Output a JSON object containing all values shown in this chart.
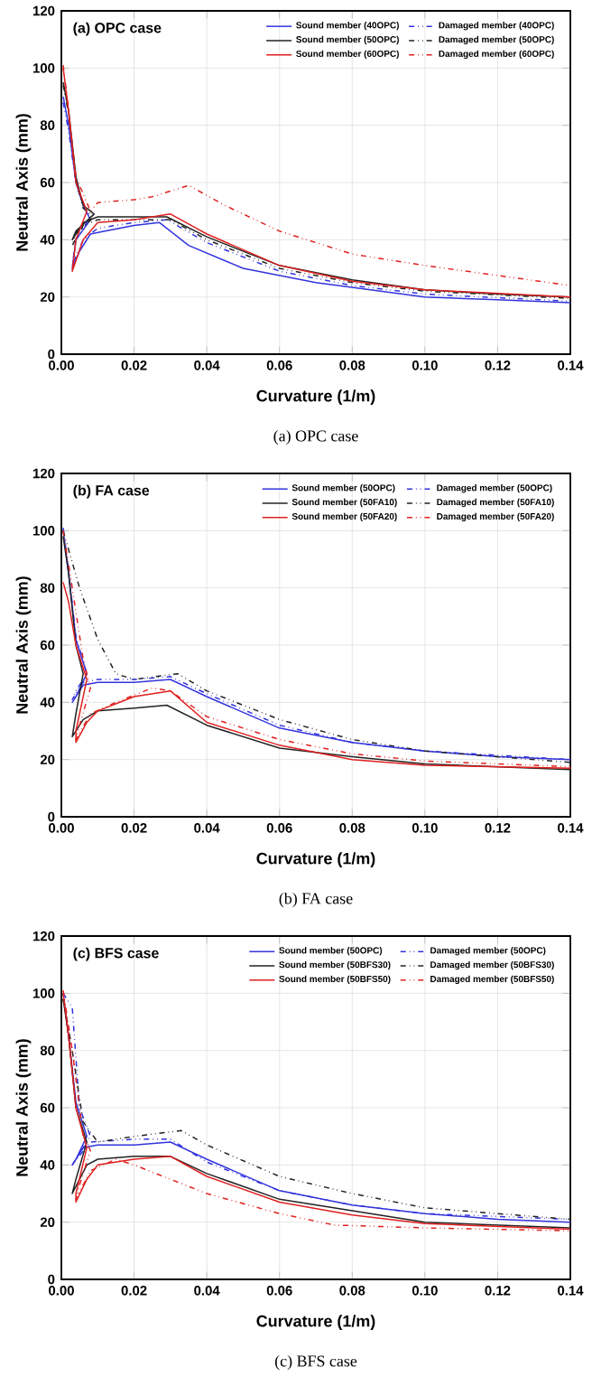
{
  "chart_data": [
    {
      "type": "line",
      "title": "(a) OPC case",
      "xlabel": "Curvature (1/m)",
      "ylabel": "Neutral Axis (mm)",
      "annotations": [
        "(a) OPC case"
      ],
      "xlim": [
        0,
        0.14
      ],
      "ylim": [
        0,
        120
      ],
      "xticks": [
        {
          "value": 0,
          "label": "0.00"
        },
        {
          "value": 0.02,
          "label": "0.02"
        },
        {
          "value": 0.04,
          "label": "0.04"
        },
        {
          "value": 0.06,
          "label": "0.06"
        },
        {
          "value": 0.08,
          "label": "0.08"
        },
        {
          "value": 0.1,
          "label": "0.10"
        },
        {
          "value": 0.12,
          "label": "0.12"
        },
        {
          "value": 0.14,
          "label": "0.14"
        }
      ],
      "yticks": [
        0,
        20,
        40,
        60,
        80,
        100,
        120
      ],
      "grid": true,
      "legend": "top right",
      "series": [
        {
          "name": "Sound member (40OPC)",
          "color": "#3333dd",
          "line_style": "solid",
          "x": [
            0.0005,
            0.002,
            0.004,
            0.006,
            0.008,
            0.004,
            0.003,
            0.005,
            0.008,
            0.012,
            0.02,
            0.027,
            0.035,
            0.05,
            0.07,
            0.1,
            0.12,
            0.14
          ],
          "values": [
            90,
            80,
            60,
            52,
            47,
            40,
            30,
            36,
            42,
            43,
            45,
            46,
            38,
            30,
            25,
            20,
            19,
            18
          ]
        },
        {
          "name": "Damaged member (40OPC)",
          "color": "#3333dd",
          "line_style": "dashdot",
          "x": [
            0.0005,
            0.002,
            0.004,
            0.006,
            0.008,
            0.004,
            0.003,
            0.006,
            0.01,
            0.02,
            0.029,
            0.04,
            0.06,
            0.08,
            0.1,
            0.14
          ],
          "values": [
            88,
            78,
            60,
            52,
            48,
            40,
            31,
            40,
            44,
            46,
            47,
            39,
            29,
            24,
            21,
            18.5
          ]
        },
        {
          "name": "Sound member (50OPC)",
          "color": "#222222",
          "line_style": "solid",
          "x": [
            0.0005,
            0.002,
            0.004,
            0.006,
            0.009,
            0.004,
            0.003,
            0.006,
            0.01,
            0.02,
            0.029,
            0.04,
            0.06,
            0.08,
            0.1,
            0.12,
            0.14
          ],
          "values": [
            95,
            85,
            62,
            52,
            49,
            43,
            40,
            46,
            48,
            48,
            48,
            41,
            31,
            26,
            22.5,
            21,
            20
          ]
        },
        {
          "name": "Damaged member (50OPC)",
          "color": "#222222",
          "line_style": "dashdot",
          "x": [
            0.0005,
            0.002,
            0.004,
            0.006,
            0.009,
            0.004,
            0.003,
            0.006,
            0.01,
            0.02,
            0.03,
            0.04,
            0.06,
            0.08,
            0.1,
            0.14
          ],
          "values": [
            94,
            84,
            61,
            51,
            48,
            42,
            38,
            45,
            47,
            47,
            47,
            40,
            30,
            25,
            22,
            19.5
          ]
        },
        {
          "name": "Sound member (60OPC)",
          "color": "#e02020",
          "line_style": "solid",
          "x": [
            0.0005,
            0.002,
            0.004,
            0.007,
            0.004,
            0.003,
            0.006,
            0.01,
            0.02,
            0.03,
            0.04,
            0.06,
            0.08,
            0.1,
            0.14
          ],
          "values": [
            100,
            85,
            60,
            50,
            40,
            29,
            40,
            46,
            47,
            49,
            42,
            31,
            25.5,
            22.5,
            20
          ]
        },
        {
          "name": "Damaged member (60OPC)",
          "color": "#e02020",
          "line_style": "dashdot",
          "x": [
            0.0005,
            0.002,
            0.004,
            0.008,
            0.01,
            0.02,
            0.025,
            0.035,
            0.045,
            0.06,
            0.08,
            0.1,
            0.12,
            0.14
          ],
          "values": [
            101,
            85,
            62,
            50,
            53,
            54,
            55,
            59,
            52,
            43,
            35,
            31,
            27.5,
            24
          ]
        }
      ]
    },
    {
      "type": "line",
      "title": "(b) FA case",
      "xlabel": "Curvature (1/m)",
      "ylabel": "Neutral Axis (mm)",
      "annotations": [
        "(b) FA case"
      ],
      "xlim": [
        0,
        0.14
      ],
      "ylim": [
        0,
        120
      ],
      "xticks": [
        {
          "value": 0,
          "label": "0.00"
        },
        {
          "value": 0.02,
          "label": "0.02"
        },
        {
          "value": 0.04,
          "label": "0.04"
        },
        {
          "value": 0.06,
          "label": "0.06"
        },
        {
          "value": 0.08,
          "label": "0.08"
        },
        {
          "value": 0.1,
          "label": "0.10"
        },
        {
          "value": 0.12,
          "label": "0.12"
        },
        {
          "value": 0.14,
          "label": "0.14"
        }
      ],
      "yticks": [
        0,
        20,
        40,
        60,
        80,
        100,
        120
      ],
      "grid": true,
      "legend": "top right",
      "series": [
        {
          "name": "Sound member (50OPC)",
          "color": "#3333dd",
          "line_style": "solid",
          "x": [
            0.0005,
            0.002,
            0.004,
            0.007,
            0.004,
            0.003,
            0.006,
            0.01,
            0.02,
            0.03,
            0.04,
            0.06,
            0.08,
            0.1,
            0.12,
            0.14
          ],
          "values": [
            100,
            85,
            62,
            50,
            42,
            40,
            46,
            47,
            47,
            48,
            42,
            31,
            26,
            23,
            21,
            20
          ]
        },
        {
          "name": "Damaged member (50OPC)",
          "color": "#3333dd",
          "line_style": "dashdot",
          "x": [
            0.0005,
            0.002,
            0.004,
            0.007,
            0.004,
            0.003,
            0.006,
            0.01,
            0.02,
            0.03,
            0.04,
            0.06,
            0.08,
            0.1,
            0.14
          ],
          "values": [
            101,
            86,
            63,
            50,
            44,
            41,
            47,
            48,
            48,
            49,
            43,
            32,
            26,
            23,
            20
          ]
        },
        {
          "name": "Sound member (50FA10)",
          "color": "#222222",
          "line_style": "solid",
          "x": [
            0.0005,
            0.002,
            0.004,
            0.006,
            0.004,
            0.003,
            0.006,
            0.01,
            0.02,
            0.029,
            0.04,
            0.06,
            0.08,
            0.1,
            0.14
          ],
          "values": [
            98,
            85,
            60,
            50,
            36,
            28,
            34,
            37,
            38,
            39,
            32,
            24,
            21,
            18.5,
            16.5
          ]
        },
        {
          "name": "Damaged member (50FA10)",
          "color": "#222222",
          "line_style": "dashdot",
          "x": [
            0.0005,
            0.005,
            0.01,
            0.015,
            0.02,
            0.032,
            0.04,
            0.06,
            0.08,
            0.1,
            0.14
          ],
          "values": [
            100,
            80,
            62,
            50,
            48,
            50,
            44,
            34,
            27,
            23,
            19
          ]
        },
        {
          "name": "Sound member (50FA20)",
          "color": "#e02020",
          "line_style": "solid",
          "x": [
            0.0005,
            0.002,
            0.004,
            0.007,
            0.004,
            0.004,
            0.007,
            0.01,
            0.02,
            0.03,
            0.04,
            0.06,
            0.08,
            0.1,
            0.14
          ],
          "values": [
            82,
            75,
            60,
            48,
            30,
            26,
            33,
            37,
            42,
            44,
            33,
            25,
            20,
            18,
            17
          ]
        },
        {
          "name": "Damaged member (50FA20)",
          "color": "#e02020",
          "line_style": "dashdot",
          "x": [
            0.0005,
            0.003,
            0.006,
            0.008,
            0.005,
            0.004,
            0.008,
            0.015,
            0.025,
            0.03,
            0.04,
            0.06,
            0.08,
            0.1,
            0.14
          ],
          "values": [
            100,
            80,
            55,
            45,
            32,
            27,
            36,
            40,
            45,
            44,
            35,
            27,
            22,
            19.5,
            17.5
          ]
        }
      ]
    },
    {
      "type": "line",
      "title": "(c) BFS case",
      "xlabel": "Curvature (1/m)",
      "ylabel": "Neutral Axis (mm)",
      "annotations": [
        "(c) BFS case"
      ],
      "xlim": [
        0,
        0.14
      ],
      "ylim": [
        0,
        120
      ],
      "xticks": [
        {
          "value": 0,
          "label": "0.00"
        },
        {
          "value": 0.02,
          "label": "0.02"
        },
        {
          "value": 0.04,
          "label": "0.04"
        },
        {
          "value": 0.06,
          "label": "0.06"
        },
        {
          "value": 0.08,
          "label": "0.08"
        },
        {
          "value": 0.1,
          "label": "0.10"
        },
        {
          "value": 0.12,
          "label": "0.12"
        },
        {
          "value": 0.14,
          "label": "0.14"
        }
      ],
      "yticks": [
        0,
        20,
        40,
        60,
        80,
        100,
        120
      ],
      "grid": true,
      "legend": "top right",
      "series": [
        {
          "name": "Sound member (50OPC)",
          "color": "#3333dd",
          "line_style": "solid",
          "x": [
            0.0005,
            0.002,
            0.004,
            0.007,
            0.004,
            0.003,
            0.006,
            0.01,
            0.02,
            0.03,
            0.04,
            0.06,
            0.08,
            0.1,
            0.12,
            0.14
          ],
          "values": [
            100,
            85,
            62,
            50,
            42,
            40,
            46,
            47,
            47,
            48,
            42,
            31,
            26,
            23,
            21,
            20
          ]
        },
        {
          "name": "Damaged member (50OPC)",
          "color": "#3333dd",
          "line_style": "dashdot",
          "x": [
            0.0005,
            0.003,
            0.005,
            0.008,
            0.005,
            0.003,
            0.008,
            0.02,
            0.03,
            0.04,
            0.06,
            0.08,
            0.1,
            0.14
          ],
          "values": [
            100,
            95,
            60,
            50,
            44,
            40,
            48,
            49,
            49,
            41,
            31,
            26,
            23,
            21
          ]
        },
        {
          "name": "Sound member (50BFS30)",
          "color": "#222222",
          "line_style": "solid",
          "x": [
            0.0005,
            0.002,
            0.004,
            0.007,
            0.004,
            0.003,
            0.007,
            0.01,
            0.02,
            0.03,
            0.04,
            0.06,
            0.08,
            0.1,
            0.14
          ],
          "values": [
            98,
            85,
            60,
            48,
            35,
            30,
            40,
            42,
            43,
            43,
            37,
            28,
            24,
            20,
            18
          ]
        },
        {
          "name": "Damaged member (50BFS30)",
          "color": "#222222",
          "line_style": "dashdot",
          "x": [
            0.0005,
            0.003,
            0.006,
            0.01,
            0.02,
            0.033,
            0.04,
            0.06,
            0.08,
            0.1,
            0.14
          ],
          "values": [
            98,
            80,
            55,
            48,
            50,
            52,
            47,
            36,
            30,
            25,
            21
          ]
        },
        {
          "name": "Sound member (50BFS50)",
          "color": "#e02020",
          "line_style": "solid",
          "x": [
            0.0005,
            0.002,
            0.004,
            0.007,
            0.004,
            0.004,
            0.007,
            0.01,
            0.02,
            0.03,
            0.04,
            0.06,
            0.08,
            0.1,
            0.14
          ],
          "values": [
            100,
            85,
            60,
            46,
            30,
            27,
            35,
            40,
            42,
            43,
            36,
            27,
            22.5,
            19.5,
            17.5
          ]
        },
        {
          "name": "Damaged member (50BFS50)",
          "color": "#e02020",
          "line_style": "dashdot",
          "x": [
            0.0005,
            0.003,
            0.006,
            0.008,
            0.005,
            0.004,
            0.008,
            0.015,
            0.02,
            0.03,
            0.04,
            0.06,
            0.075,
            0.1,
            0.14
          ],
          "values": [
            101,
            80,
            50,
            45,
            33,
            28,
            38,
            42,
            40,
            35,
            30,
            23,
            19,
            18,
            17
          ]
        }
      ]
    }
  ]
}
